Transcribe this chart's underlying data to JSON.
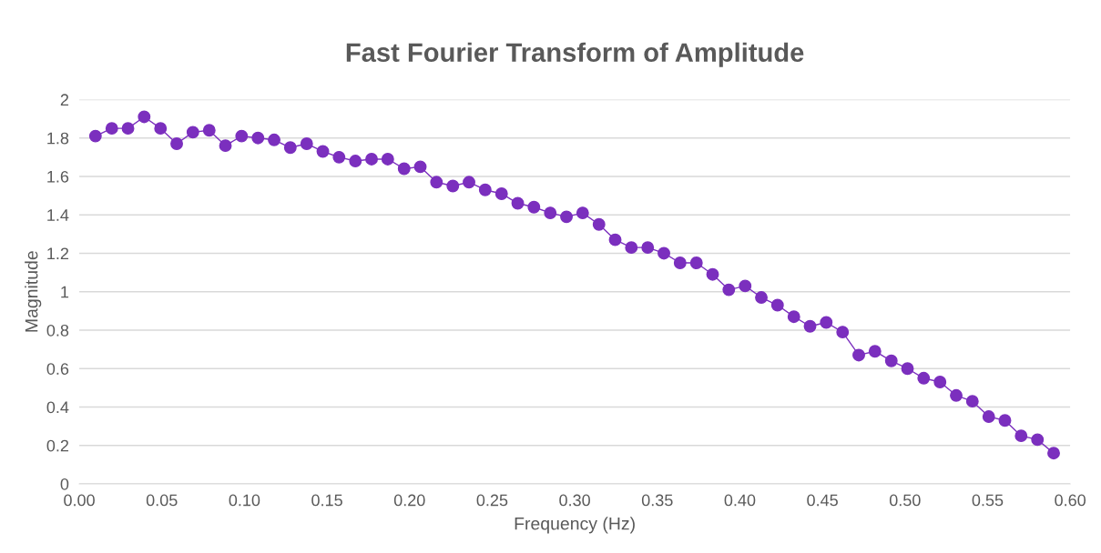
{
  "chart_data": {
    "type": "line",
    "title": "Fast Fourier Transform of Amplitude",
    "xlabel": "Frequency (Hz)",
    "ylabel": "Magnitude",
    "x": [
      0.0098,
      0.0197,
      0.0295,
      0.0393,
      0.0492,
      0.059,
      0.0688,
      0.0787,
      0.0885,
      0.0983,
      0.1082,
      0.118,
      0.1278,
      0.1377,
      0.1475,
      0.1573,
      0.1672,
      0.177,
      0.1868,
      0.1967,
      0.2065,
      0.2163,
      0.2262,
      0.236,
      0.2458,
      0.2557,
      0.2655,
      0.2753,
      0.2852,
      0.295,
      0.3048,
      0.3147,
      0.3245,
      0.3343,
      0.3442,
      0.354,
      0.3638,
      0.3737,
      0.3835,
      0.3933,
      0.4032,
      0.413,
      0.4228,
      0.4327,
      0.4425,
      0.4523,
      0.4622,
      0.472,
      0.4818,
      0.4917,
      0.5015,
      0.5113,
      0.5212,
      0.531,
      0.5408,
      0.5507,
      0.5605,
      0.5703,
      0.5802,
      0.59
    ],
    "series": [
      {
        "color": "#7b2fbe",
        "values": [
          1.81,
          1.85,
          1.85,
          1.91,
          1.85,
          1.77,
          1.83,
          1.84,
          1.76,
          1.81,
          1.8,
          1.79,
          1.75,
          1.77,
          1.73,
          1.7,
          1.68,
          1.69,
          1.69,
          1.64,
          1.65,
          1.57,
          1.55,
          1.57,
          1.53,
          1.51,
          1.46,
          1.44,
          1.41,
          1.39,
          1.41,
          1.35,
          1.27,
          1.23,
          1.23,
          1.2,
          1.15,
          1.15,
          1.09,
          1.01,
          1.03,
          0.97,
          0.93,
          0.87,
          0.82,
          0.84,
          0.79,
          0.67,
          0.69,
          0.64,
          0.6,
          0.55,
          0.53,
          0.46,
          0.43,
          0.35,
          0.33,
          0.25,
          0.23,
          0.16
        ]
      }
    ],
    "xlim": [
      0,
      0.6
    ],
    "ylim": [
      0,
      2
    ],
    "xticks": [
      {
        "value": 0,
        "label": "0.00"
      },
      {
        "value": 0.05,
        "label": "0.05"
      },
      {
        "value": 0.1,
        "label": "0.10"
      },
      {
        "value": 0.15,
        "label": "0.15"
      },
      {
        "value": 0.2,
        "label": "0.20"
      },
      {
        "value": 0.25,
        "label": "0.25"
      },
      {
        "value": 0.3,
        "label": "0.30"
      },
      {
        "value": 0.35,
        "label": "0.35"
      },
      {
        "value": 0.4,
        "label": "0.40"
      },
      {
        "value": 0.45,
        "label": "0.45"
      },
      {
        "value": 0.5,
        "label": "0.50"
      },
      {
        "value": 0.55,
        "label": "0.55"
      },
      {
        "value": 0.6,
        "label": "0.60"
      }
    ],
    "yticks": [
      0,
      0.2,
      0.4,
      0.6,
      0.8,
      1,
      1.2,
      1.4,
      1.6,
      1.8,
      2
    ],
    "grid": "y",
    "marker": "circle",
    "line_style": "solid"
  }
}
